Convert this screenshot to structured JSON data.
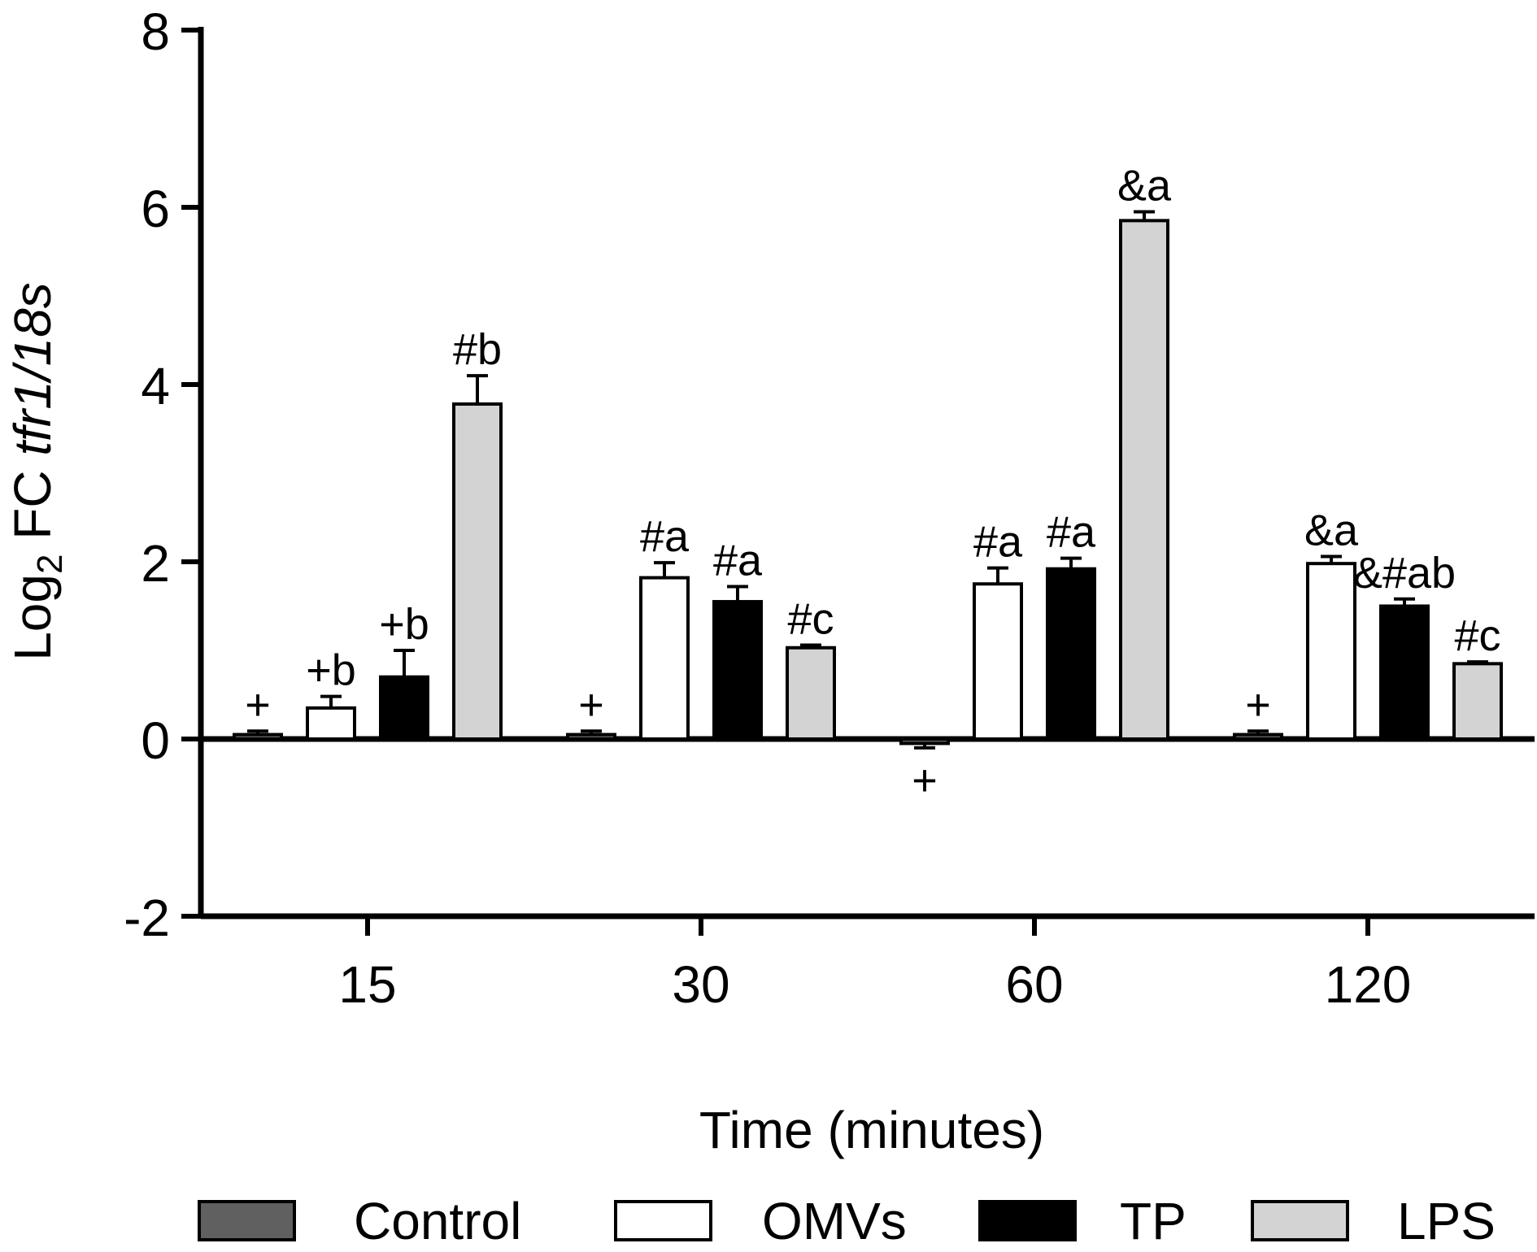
{
  "chart_data": {
    "type": "bar",
    "title": "",
    "xlabel": "Time (minutes)",
    "ylabel": {
      "prefix": "Log",
      "subscript": "2",
      "middle": " FC ",
      "italic": "tfr1/18s"
    },
    "categories": [
      "15",
      "30",
      "60",
      "120"
    ],
    "ylim": [
      -2,
      8
    ],
    "yticks": [
      "-2",
      "0",
      "2",
      "4",
      "6",
      "8"
    ],
    "series": [
      {
        "name": "Control",
        "color": "#606060",
        "values": [
          0.05,
          0.05,
          -0.05,
          0.05
        ],
        "errors": [
          0.04,
          0.04,
          0.05,
          0.04
        ],
        "labels": [
          "+",
          "+",
          "+",
          "+"
        ]
      },
      {
        "name": "OMVs",
        "color": "#ffffff",
        "values": [
          0.35,
          1.82,
          1.75,
          1.98
        ],
        "errors": [
          0.13,
          0.17,
          0.18,
          0.08
        ],
        "labels": [
          "+b",
          "#a",
          "#a",
          "&a"
        ]
      },
      {
        "name": "TP",
        "color": "#000000",
        "values": [
          0.7,
          1.55,
          1.92,
          1.5
        ],
        "errors": [
          0.3,
          0.17,
          0.12,
          0.08
        ],
        "labels": [
          "+b",
          "#a",
          "#a",
          "&#ab"
        ]
      },
      {
        "name": "LPS",
        "color": "#d3d3d3",
        "values": [
          3.78,
          1.03,
          5.85,
          0.85
        ],
        "errors": [
          0.32,
          0.03,
          0.1,
          0.02
        ],
        "labels": [
          "#b",
          "#c",
          "&a",
          "#c"
        ]
      }
    ],
    "legend": {
      "position": "bottom"
    }
  }
}
